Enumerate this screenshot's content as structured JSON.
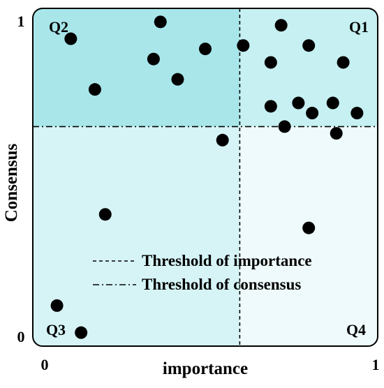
{
  "chart_data": {
    "type": "scatter",
    "xlabel": "importance",
    "ylabel": "Consensus",
    "xlim": [
      0,
      1
    ],
    "ylim": [
      0,
      1
    ],
    "x_ticks": [
      "0",
      "1"
    ],
    "y_ticks": [
      "0",
      "1"
    ],
    "grid": false,
    "thresholds": {
      "importance": 0.6,
      "consensus": 0.65
    },
    "quadrants": [
      {
        "label": "Q1",
        "position": "top-right",
        "color": "#c6f0f2"
      },
      {
        "label": "Q2",
        "position": "top-left",
        "color": "#a8e6ea"
      },
      {
        "label": "Q3",
        "position": "bottom-left",
        "color": "#d6f4f6"
      },
      {
        "label": "Q4",
        "position": "bottom-right",
        "color": "#eefafb"
      }
    ],
    "legend": {
      "placement": "bottom-right",
      "entries": [
        {
          "label": "Threshold of importance",
          "linestyle": "dashed"
        },
        {
          "label": "Threshold of consensus",
          "linestyle": "dashdot"
        }
      ]
    },
    "points": [
      {
        "x": 0.11,
        "y": 0.91
      },
      {
        "x": 0.18,
        "y": 0.76
      },
      {
        "x": 0.37,
        "y": 0.96
      },
      {
        "x": 0.35,
        "y": 0.85
      },
      {
        "x": 0.42,
        "y": 0.79
      },
      {
        "x": 0.5,
        "y": 0.88
      },
      {
        "x": 0.61,
        "y": 0.89
      },
      {
        "x": 0.72,
        "y": 0.95
      },
      {
        "x": 0.8,
        "y": 0.89
      },
      {
        "x": 0.69,
        "y": 0.84
      },
      {
        "x": 0.9,
        "y": 0.84
      },
      {
        "x": 0.69,
        "y": 0.71
      },
      {
        "x": 0.77,
        "y": 0.72
      },
      {
        "x": 0.81,
        "y": 0.69
      },
      {
        "x": 0.87,
        "y": 0.72
      },
      {
        "x": 0.94,
        "y": 0.69
      },
      {
        "x": 0.73,
        "y": 0.65
      },
      {
        "x": 0.88,
        "y": 0.63
      },
      {
        "x": 0.55,
        "y": 0.61
      },
      {
        "x": 0.21,
        "y": 0.39
      },
      {
        "x": 0.8,
        "y": 0.35
      },
      {
        "x": 0.07,
        "y": 0.12
      },
      {
        "x": 0.14,
        "y": 0.04
      }
    ]
  }
}
